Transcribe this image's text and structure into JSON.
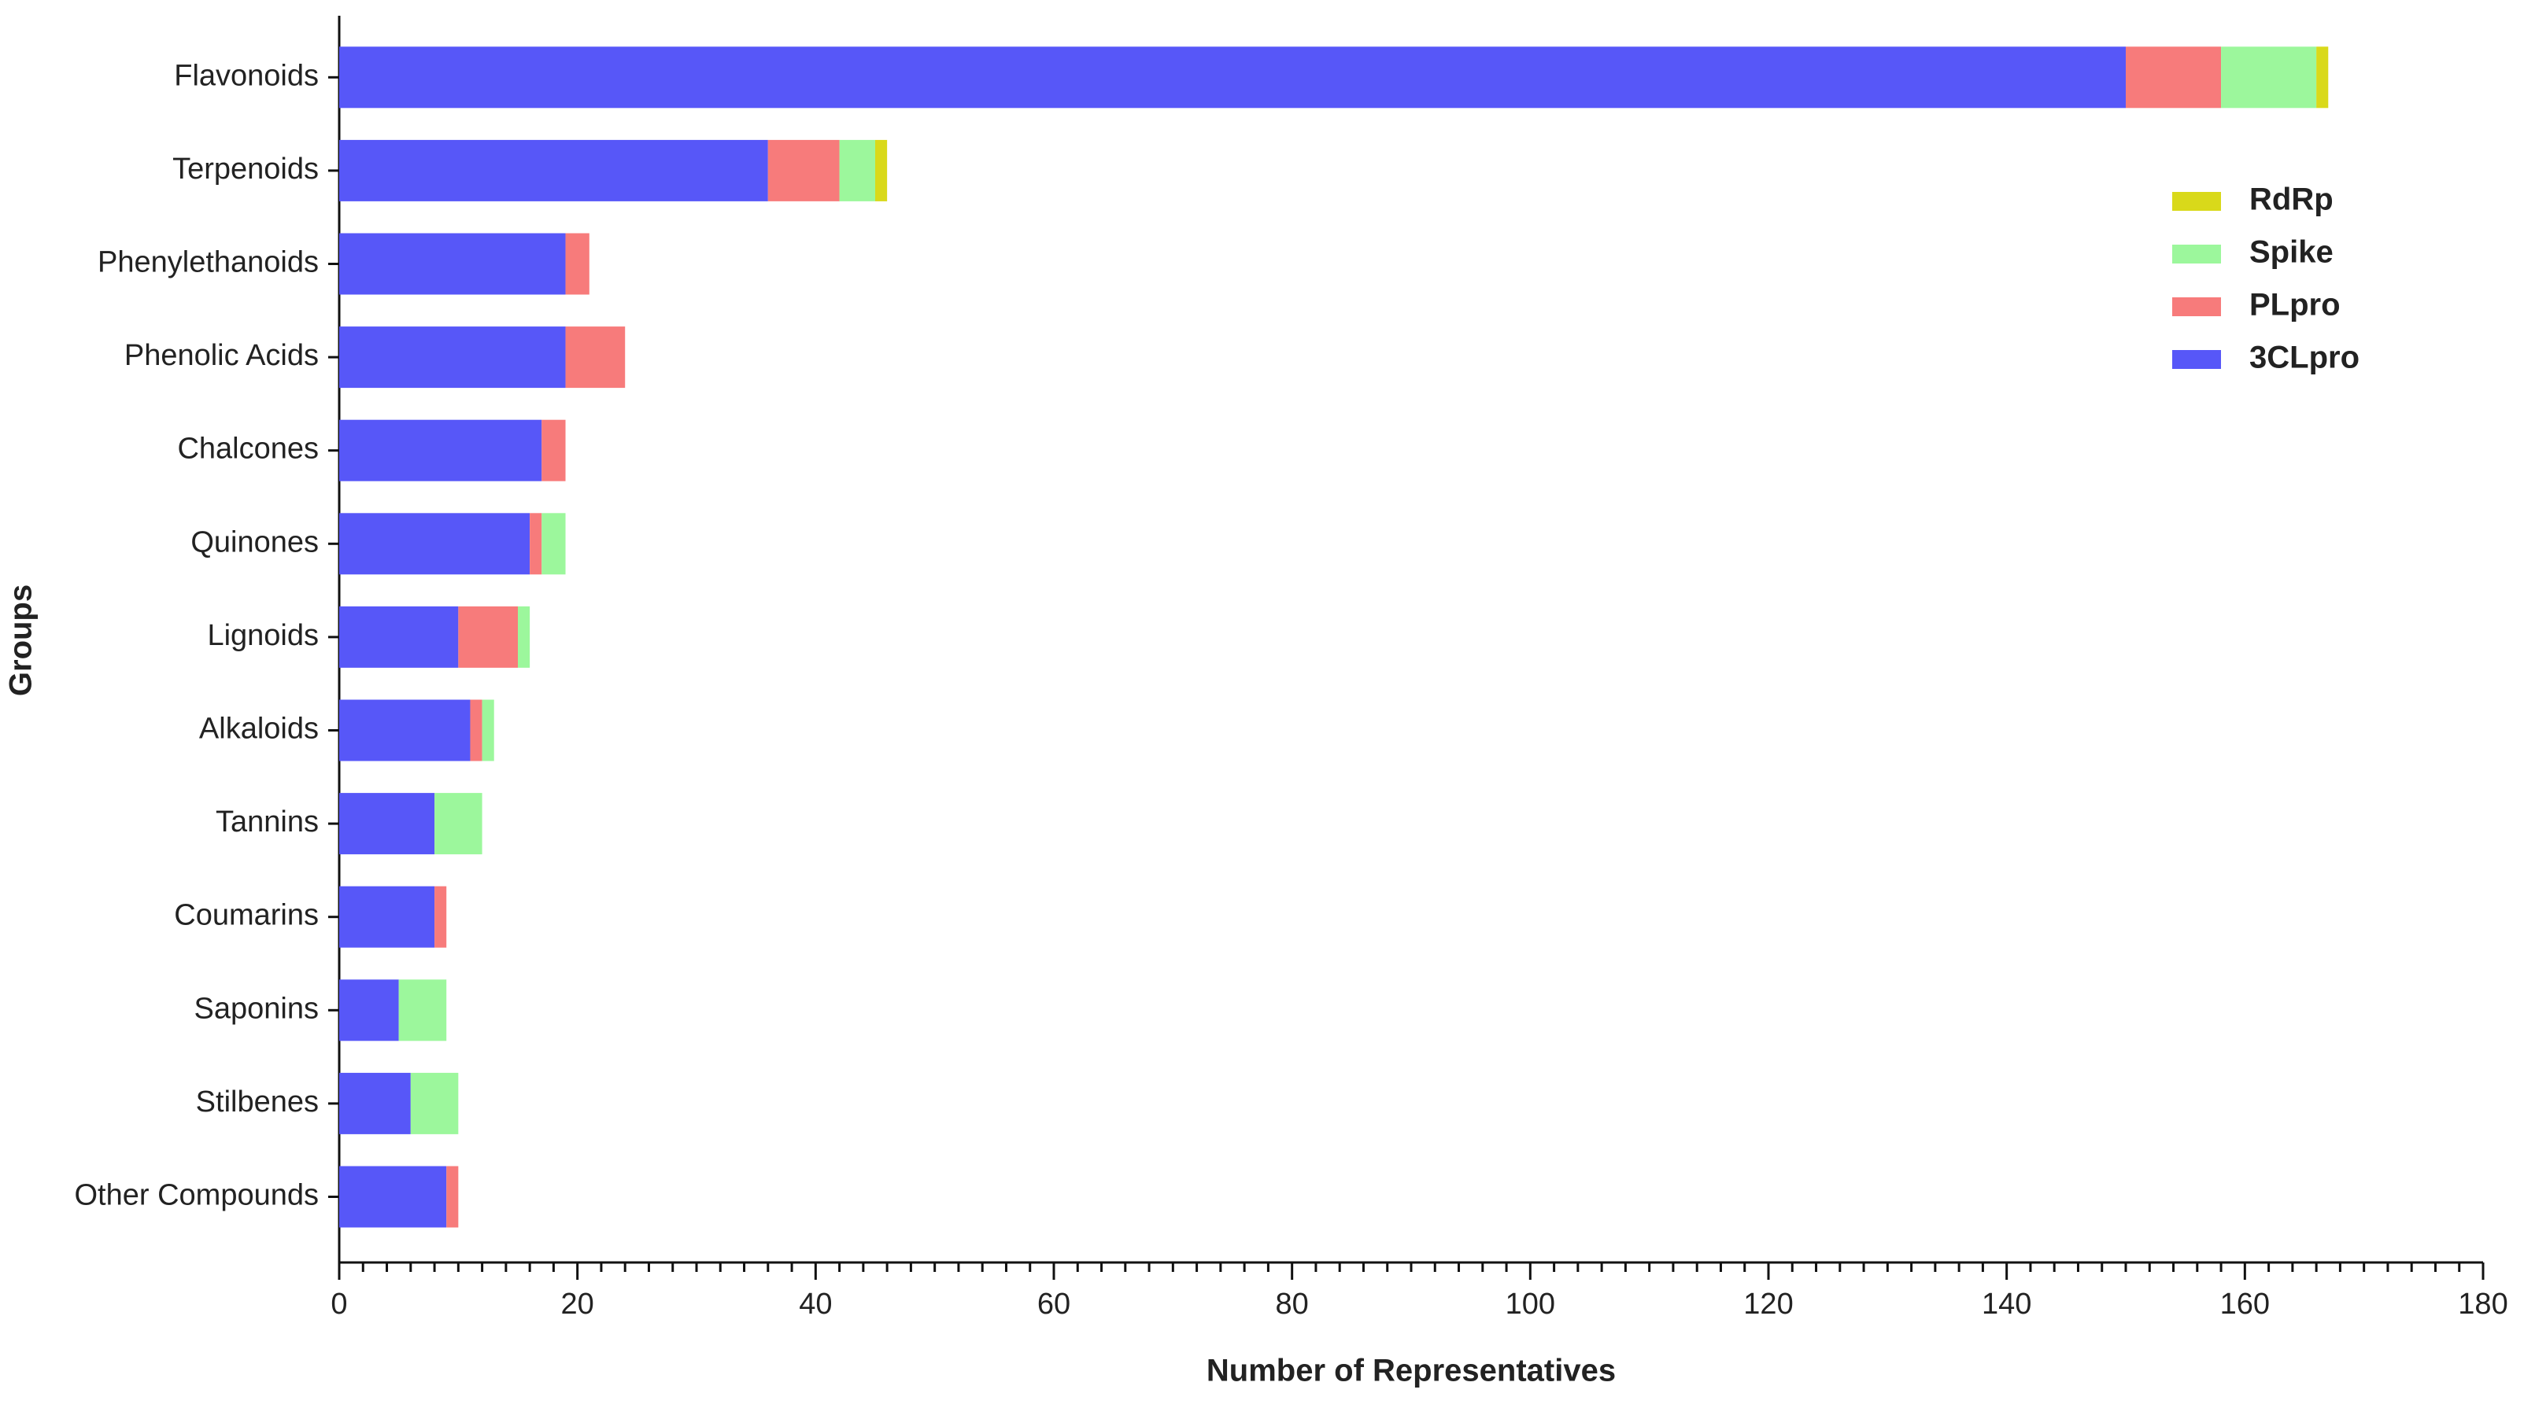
{
  "chart_data": {
    "type": "stacked_bar",
    "orientation": "horizontal",
    "x_label": "Number of Representatives",
    "y_label": "Groups",
    "categories": [
      "Flavonoids",
      "Terpenoids",
      "Phenylethanoids",
      "Phenolic Acids",
      "Chalcones",
      "Quinones",
      "Lignoids",
      "Alkaloids",
      "Tannins",
      "Coumarins",
      "Saponins",
      "Stilbenes",
      "Other Compounds"
    ],
    "series": [
      {
        "name": "3CLpro",
        "color": "#5757f8",
        "values": [
          150,
          36,
          19,
          19,
          17,
          16,
          10,
          11,
          8,
          8,
          5,
          6,
          9
        ]
      },
      {
        "name": "PLpro",
        "color": "#f77b7b",
        "values": [
          8,
          6,
          2,
          5,
          2,
          1,
          5,
          1,
          0,
          1,
          0,
          0,
          1
        ]
      },
      {
        "name": "Spike",
        "color": "#9cf79c",
        "values": [
          8,
          3,
          0,
          0,
          0,
          2,
          1,
          1,
          4,
          0,
          4,
          4,
          0
        ]
      },
      {
        "name": "RdRp",
        "color": "#d9d91a",
        "values": [
          1,
          1,
          0,
          0,
          0,
          0,
          0,
          0,
          0,
          0,
          0,
          0,
          0
        ]
      }
    ],
    "xlim": [
      0,
      180
    ],
    "xticks": [
      0,
      20,
      40,
      60,
      80,
      100,
      120,
      140,
      160,
      180
    ],
    "grid": false,
    "legend": "upper right"
  }
}
